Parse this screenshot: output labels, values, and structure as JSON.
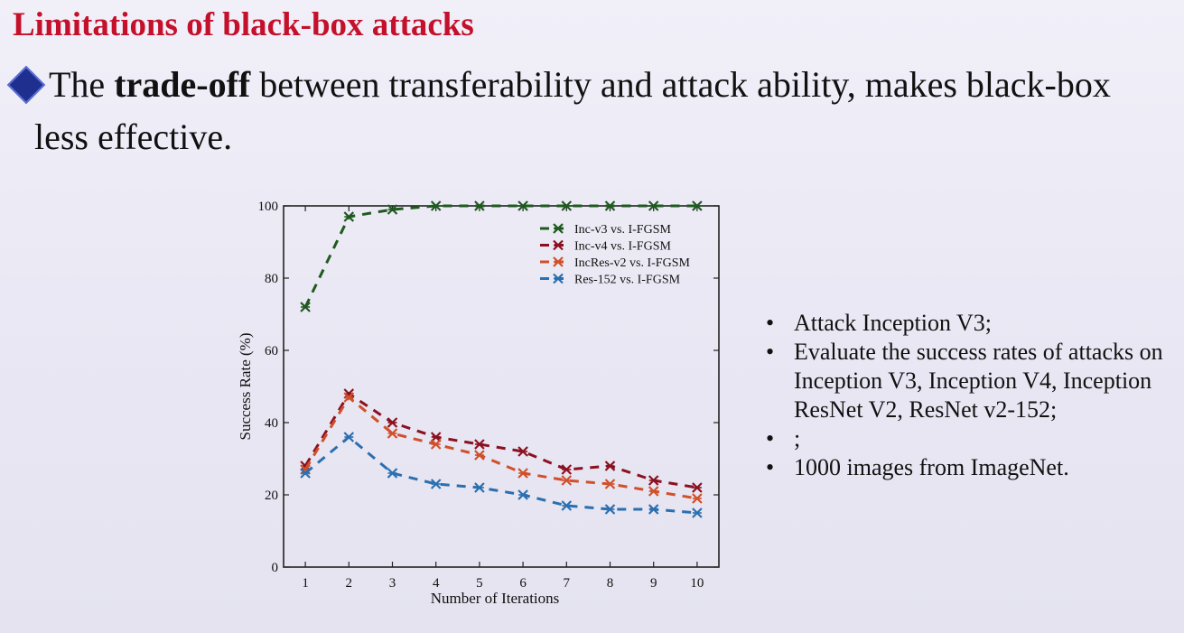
{
  "slide": {
    "title": "Limitations of black-box attacks",
    "bullet_prefix": "The ",
    "bullet_bold": "trade-off",
    "bullet_rest": " between transferability and attack ability, makes black-box",
    "bullet_continuation": "less effective."
  },
  "side_bullets": [
    "Attack Inception V3;",
    "Evaluate the success rates of attacks on Inception V3, Inception V4, Inception ResNet V2, ResNet v2-152;",
    ";",
    "1000 images from ImageNet."
  ],
  "chart_data": {
    "type": "line",
    "xlabel": "Number of Iterations",
    "ylabel": "Success Rate (%)",
    "x": [
      1,
      2,
      3,
      4,
      5,
      6,
      7,
      8,
      9,
      10
    ],
    "xlim": [
      0.5,
      10.5
    ],
    "ylim": [
      0,
      100
    ],
    "xticks": [
      "1",
      "2",
      "3",
      "4",
      "5",
      "6",
      "7",
      "8",
      "9",
      "10"
    ],
    "yticks": [
      "0",
      "20",
      "40",
      "60",
      "80",
      "100"
    ],
    "legend_position": "top-right",
    "line_style": "dashed",
    "marker": "x",
    "series": [
      {
        "name": "Inc-v3 vs. I-FGSM",
        "color": "#1f5a1f",
        "values": [
          72,
          97,
          99,
          100,
          100,
          100,
          100,
          100,
          100,
          100
        ]
      },
      {
        "name": "Inc-v4 vs. I-FGSM",
        "color": "#8b1020",
        "values": [
          28,
          48,
          40,
          36,
          34,
          32,
          27,
          28,
          24,
          22
        ]
      },
      {
        "name": "IncRes-v2 vs. I-FGSM",
        "color": "#d0502a",
        "values": [
          27,
          47,
          37,
          34,
          31,
          26,
          24,
          23,
          21,
          19
        ]
      },
      {
        "name": "Res-152 vs. I-FGSM",
        "color": "#2a6fb0",
        "values": [
          26,
          36,
          26,
          23,
          22,
          20,
          17,
          16,
          16,
          15
        ]
      }
    ]
  }
}
